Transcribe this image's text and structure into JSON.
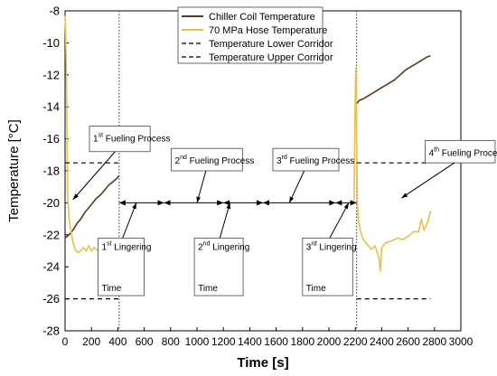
{
  "chart_data": {
    "type": "line",
    "xlabel": "Time [s]",
    "ylabel": "Temperature [°C]",
    "xlim": [
      0,
      3000
    ],
    "ylim": [
      -28,
      -8
    ],
    "xticks": [
      0,
      200,
      400,
      600,
      800,
      1000,
      1200,
      1400,
      1600,
      1800,
      2000,
      2200,
      2400,
      2600,
      2800,
      3000
    ],
    "yticks": [
      -28,
      -26,
      -24,
      -22,
      -20,
      -18,
      -16,
      -14,
      -12,
      -10,
      -8
    ],
    "grid": false,
    "legend_position": "top-center",
    "series": [
      {
        "name": "Chiller Coil Temperature",
        "color": "#5a3a1e",
        "segments": [
          [
            [
              0,
              -22.2
            ],
            [
              30,
              -22.0
            ],
            [
              60,
              -21.7
            ],
            [
              90,
              -21.3
            ],
            [
              120,
              -21.0
            ],
            [
              150,
              -20.6
            ],
            [
              180,
              -20.3
            ],
            [
              210,
              -20.0
            ],
            [
              240,
              -19.7
            ],
            [
              270,
              -19.5
            ],
            [
              300,
              -19.2
            ],
            [
              330,
              -18.9
            ],
            [
              360,
              -18.7
            ],
            [
              390,
              -18.5
            ],
            [
              410,
              -18.3
            ]
          ],
          [
            [
              2210,
              -13.8
            ],
            [
              2230,
              -13.6
            ],
            [
              2260,
              -13.5
            ],
            [
              2300,
              -13.3
            ],
            [
              2340,
              -13.1
            ],
            [
              2380,
              -12.9
            ],
            [
              2420,
              -12.7
            ],
            [
              2460,
              -12.5
            ],
            [
              2500,
              -12.3
            ],
            [
              2540,
              -12.0
            ],
            [
              2580,
              -11.7
            ],
            [
              2620,
              -11.5
            ],
            [
              2660,
              -11.3
            ],
            [
              2700,
              -11.1
            ],
            [
              2740,
              -10.9
            ],
            [
              2770,
              -10.8
            ]
          ]
        ]
      },
      {
        "name": "70 MPa Hose Temperature",
        "color": "#e8c24a",
        "segments": [
          [
            [
              0,
              -8.3
            ],
            [
              5,
              -9.5
            ],
            [
              10,
              -12
            ],
            [
              15,
              -16
            ],
            [
              20,
              -19.5
            ],
            [
              30,
              -21
            ],
            [
              45,
              -21.8
            ],
            [
              60,
              -22.5
            ],
            [
              80,
              -23
            ],
            [
              100,
              -23.1
            ],
            [
              120,
              -23
            ],
            [
              140,
              -22.8
            ],
            [
              160,
              -23
            ],
            [
              180,
              -22.7
            ],
            [
              200,
              -23
            ],
            [
              220,
              -22.8
            ],
            [
              250,
              -23
            ],
            [
              280,
              -22.9
            ],
            [
              300,
              -23
            ],
            [
              310,
              -22.2
            ],
            [
              320,
              -23
            ],
            [
              350,
              -23.1
            ],
            [
              380,
              -23
            ],
            [
              410,
              -23.2
            ]
          ],
          [
            [
              2190,
              -20
            ],
            [
              2200,
              -13
            ],
            [
              2205,
              -11.5
            ],
            [
              2210,
              -16
            ],
            [
              2215,
              -20
            ],
            [
              2225,
              -21.2
            ],
            [
              2240,
              -21.8
            ],
            [
              2260,
              -22.3
            ],
            [
              2290,
              -22.6
            ],
            [
              2320,
              -22.9
            ],
            [
              2350,
              -22.7
            ],
            [
              2380,
              -23.5
            ],
            [
              2390,
              -24.3
            ],
            [
              2400,
              -22.8
            ],
            [
              2430,
              -22.5
            ],
            [
              2470,
              -22.4
            ],
            [
              2520,
              -22.2
            ],
            [
              2560,
              -22.3
            ],
            [
              2600,
              -22.1
            ],
            [
              2640,
              -21.8
            ],
            [
              2680,
              -21.8
            ],
            [
              2700,
              -21.0
            ],
            [
              2720,
              -21.7
            ],
            [
              2750,
              -21.2
            ],
            [
              2770,
              -20.5
            ]
          ]
        ]
      },
      {
        "name": "Temperature Lower Corridor",
        "color": "#000000",
        "dashed": true,
        "segments": [
          [
            [
              0,
              -26
            ],
            [
              410,
              -26
            ]
          ],
          [
            [
              2210,
              -26
            ],
            [
              2770,
              -26
            ]
          ]
        ]
      },
      {
        "name": "Temperature Upper Corridor",
        "color": "#000000",
        "dashed": true,
        "segments": [
          [
            [
              0,
              -17.5
            ],
            [
              410,
              -17.5
            ]
          ],
          [
            [
              2210,
              -17.5
            ],
            [
              2770,
              -17.5
            ]
          ]
        ]
      }
    ],
    "vertical_lines": [
      410,
      2210
    ],
    "timeline": {
      "y": -20,
      "xmin": 410,
      "xmax": 2210,
      "markers": [
        410,
        750,
        1200,
        1500,
        2050,
        2210
      ]
    },
    "annotations": [
      {
        "id": "a1",
        "base": "1",
        "sup": "st",
        "line1": "Fueling Process",
        "line2": "",
        "box_x": [
          185,
          645
        ],
        "box_y": [
          -15.2,
          -16.8
        ],
        "arrow_to": [
          60,
          -19.8
        ]
      },
      {
        "id": "a2",
        "base": "2",
        "sup": "nd",
        "line1": "Fueling Process",
        "line2": "",
        "box_x": [
          805,
          1345
        ],
        "box_y": [
          -16.6,
          -18.0
        ],
        "arrow_to": [
          1000,
          -20
        ]
      },
      {
        "id": "a3",
        "base": "3",
        "sup": "rd",
        "line1": "Fueling Process",
        "line2": "",
        "box_x": [
          1575,
          2075
        ],
        "box_y": [
          -16.6,
          -18.0
        ],
        "arrow_to": [
          1700,
          -20
        ]
      },
      {
        "id": "a4",
        "base": "4",
        "sup": "th",
        "line1": "Fueling Process",
        "line2": "",
        "box_x": [
          2730,
          3260
        ],
        "box_y": [
          -16.1,
          -17.5
        ],
        "arrow_to": [
          2550,
          -19.7
        ]
      },
      {
        "id": "l1",
        "base": "1",
        "sup": "st",
        "line1": "Lingering",
        "line2": "Time",
        "box_x": [
          250,
          600
        ],
        "box_y": [
          -22.2,
          -25.8
        ],
        "arrow_to": [
          540,
          -20
        ]
      },
      {
        "id": "l2",
        "base": "2",
        "sup": "nd",
        "line1": "Lingering",
        "line2": "Time",
        "box_x": [
          980,
          1350
        ],
        "box_y": [
          -22.2,
          -25.8
        ],
        "arrow_to": [
          1250,
          -20
        ]
      },
      {
        "id": "l3",
        "base": "3",
        "sup": "rd",
        "line1": "Lingering",
        "line2": "Time",
        "box_x": [
          1800,
          2180
        ],
        "box_y": [
          -22.2,
          -25.8
        ],
        "arrow_to": [
          2150,
          -20
        ]
      }
    ]
  }
}
